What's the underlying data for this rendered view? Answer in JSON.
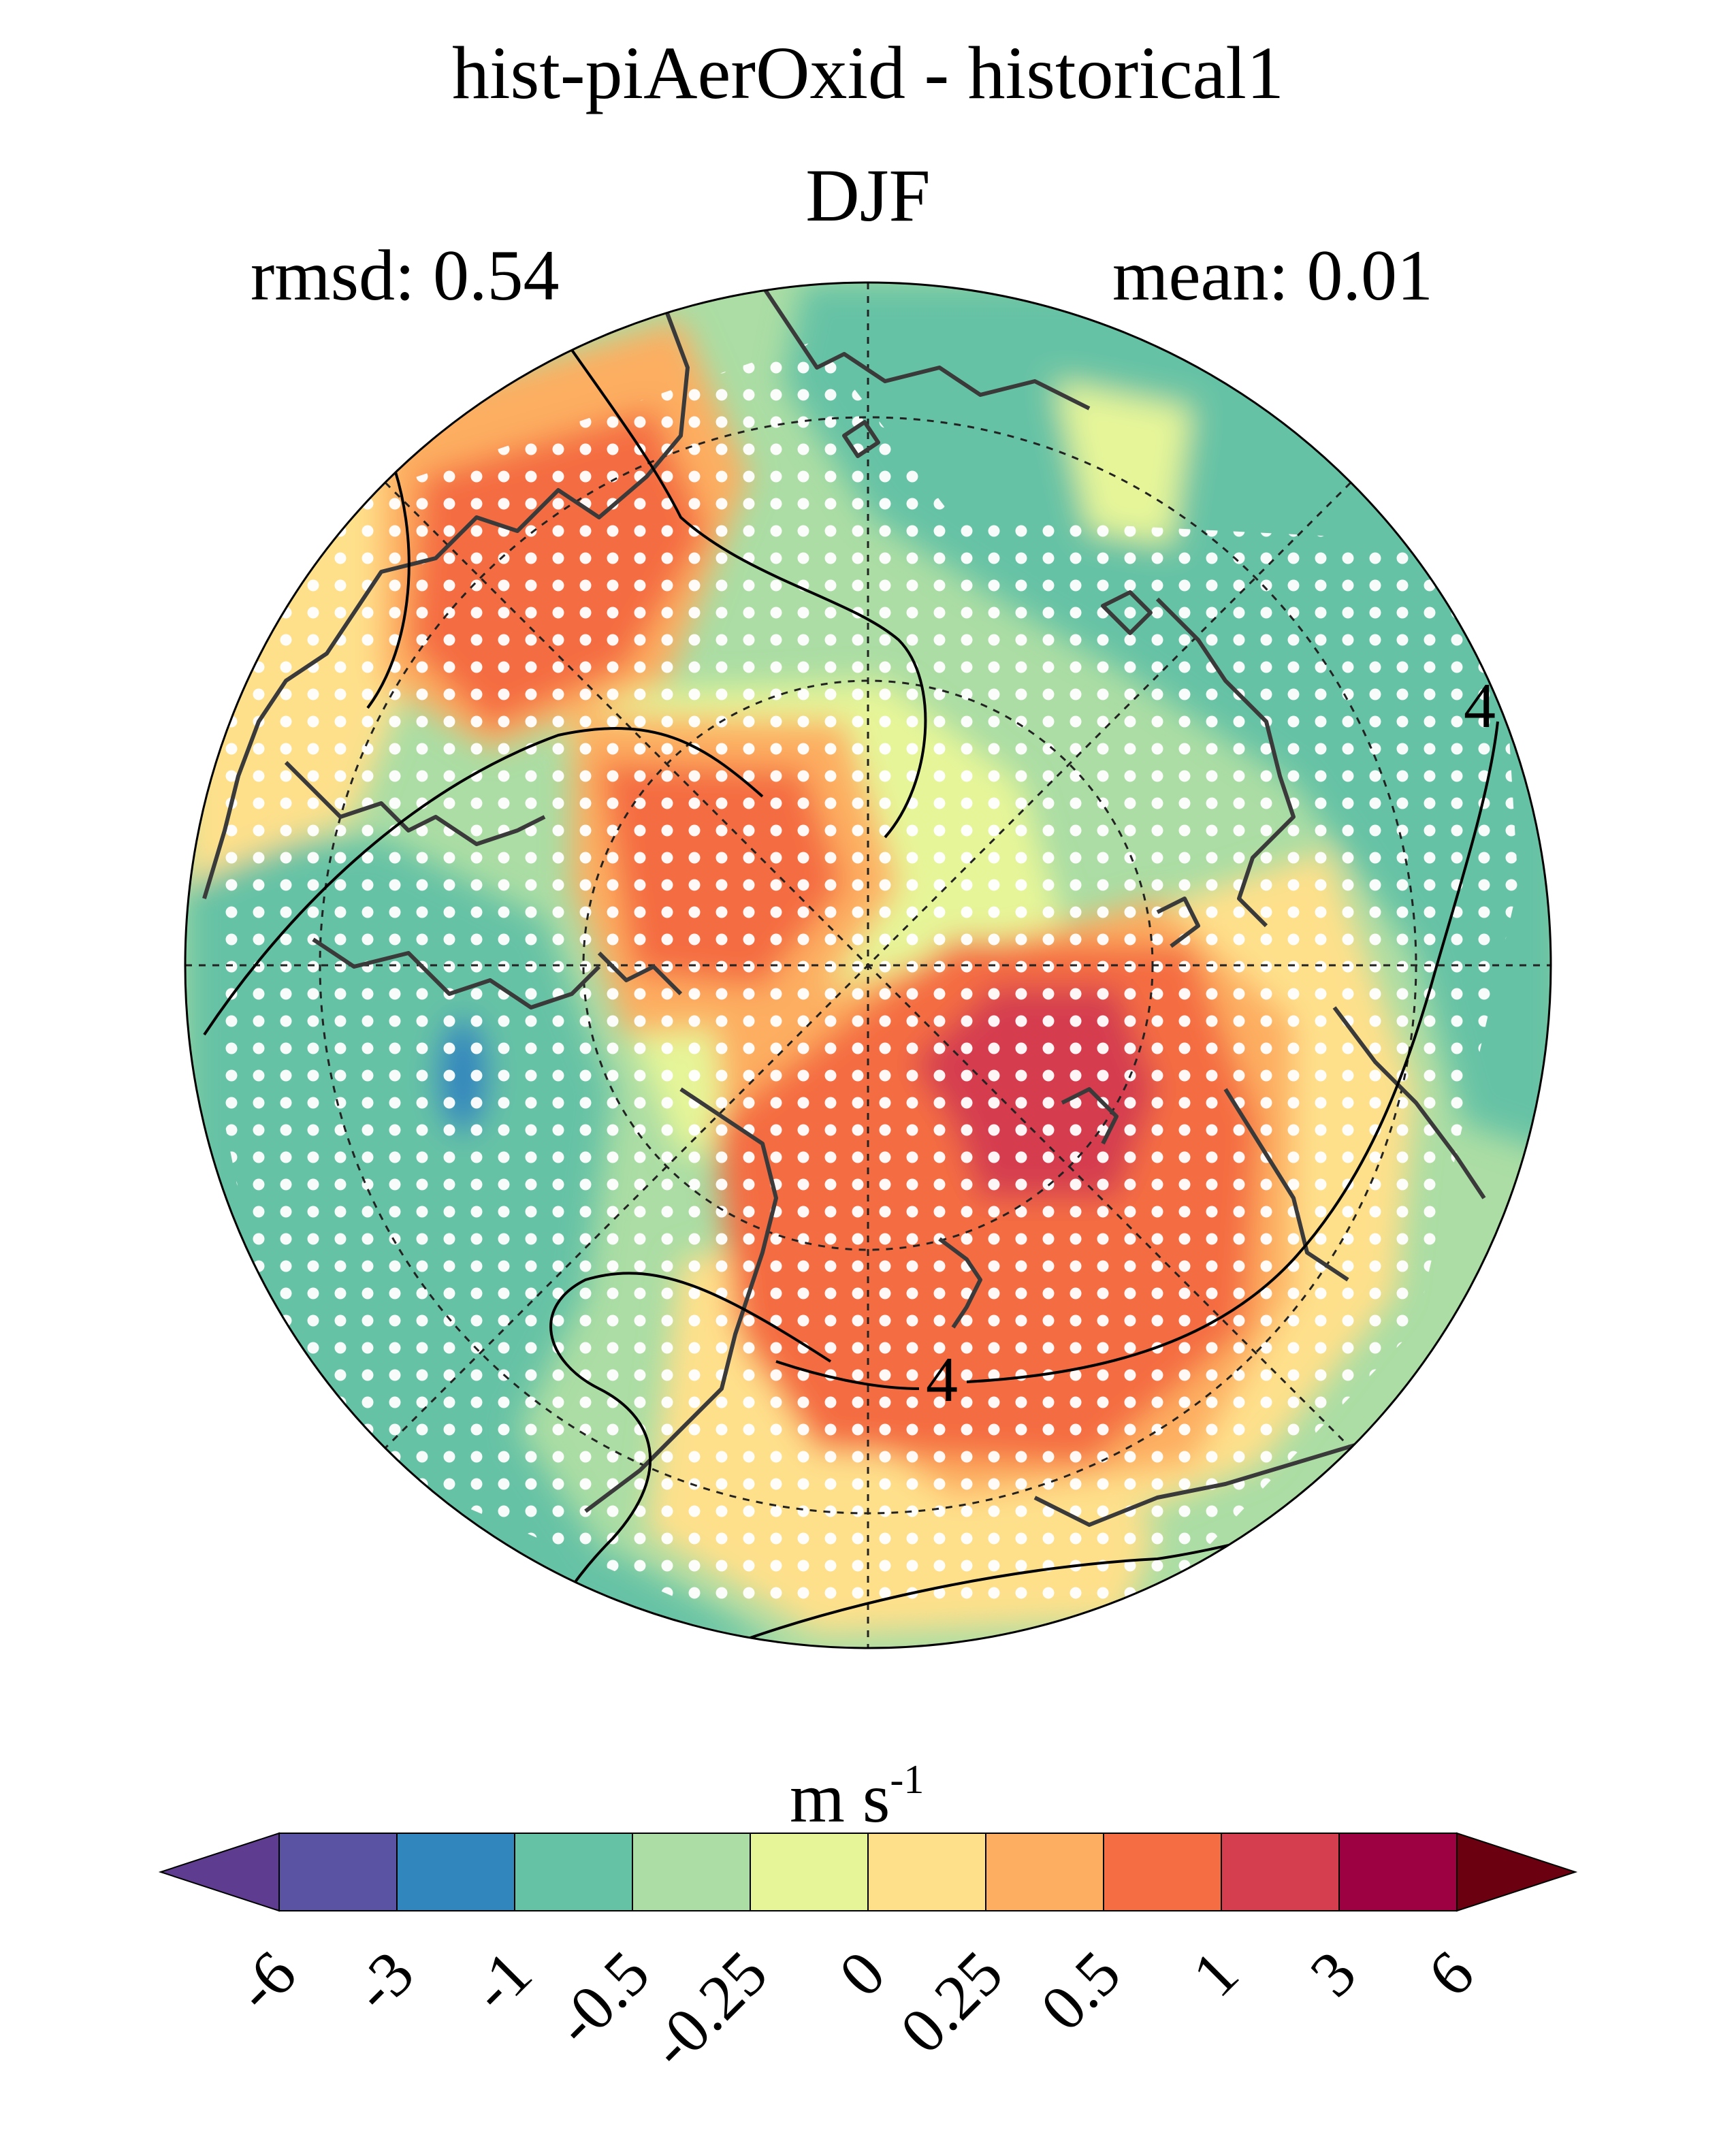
{
  "title": "hist-piAerOxid - historical1",
  "season": "DJF",
  "stats": {
    "rmsd": "rmsd: 0.54",
    "mean": "mean: 0.01"
  },
  "colorbar": {
    "units_main": "m s",
    "units_exp": "-1",
    "tick_labels": [
      "-6",
      "-3",
      "-1",
      "-0.5",
      "-0.25",
      "0",
      "0.25",
      "0.5",
      "1",
      "3",
      "6"
    ],
    "colors": [
      "#5e3c8f",
      "#5a52a3",
      "#3086bd",
      "#66c2a5",
      "#abdda4",
      "#e6f598",
      "#fee08b",
      "#fdae61",
      "#f46d43",
      "#d53e4f",
      "#9e0142",
      "#6b0010"
    ]
  },
  "map": {
    "projection": "north-polar-stereographic",
    "contour_label": "4",
    "stippling": "white dots mark significant regions"
  }
}
